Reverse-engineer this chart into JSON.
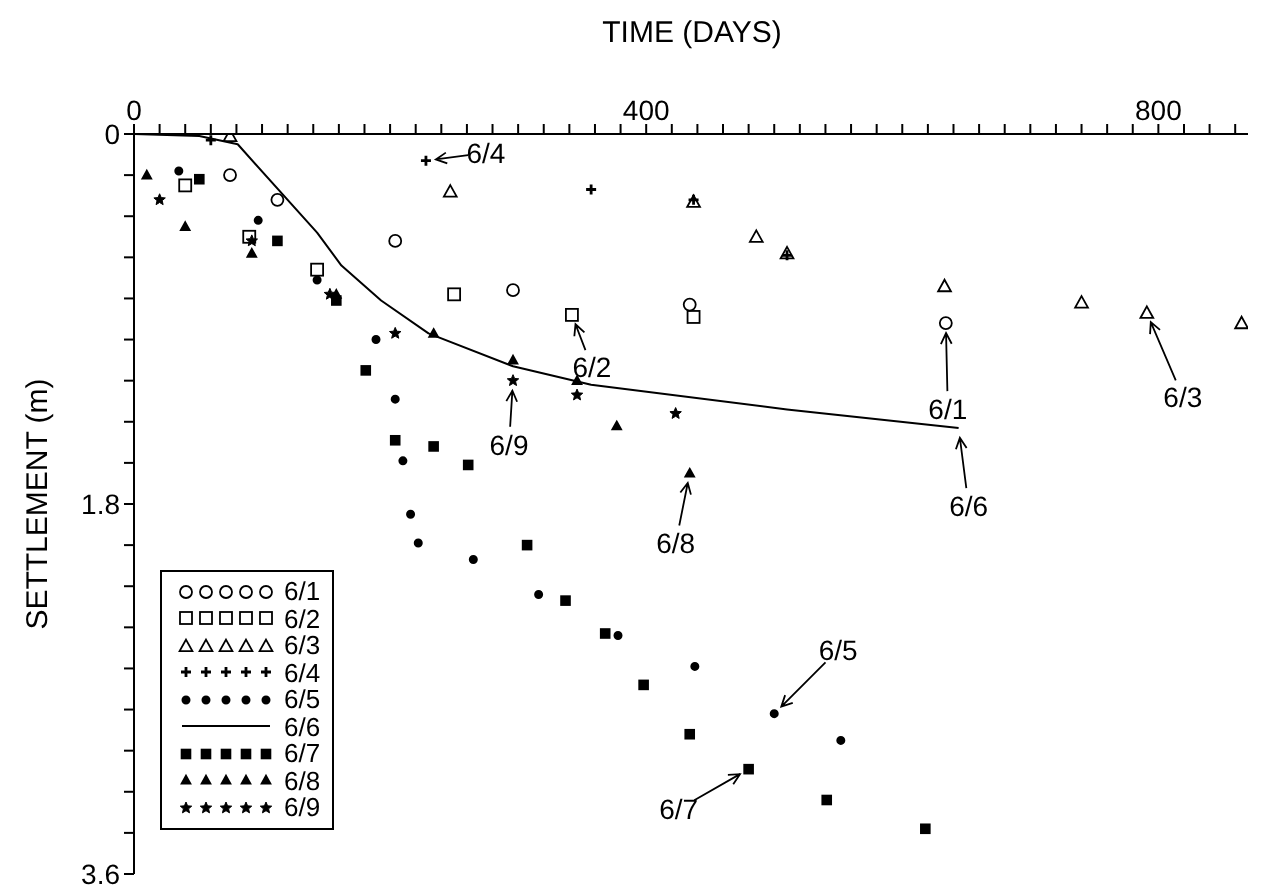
{
  "chart_data": {
    "type": "scatter",
    "xlabel": "TIME (DAYS)",
    "ylabel": "SETTLEMENT (m)",
    "xlim": [
      0,
      870
    ],
    "ylim": [
      3.6,
      0
    ],
    "xticks": [
      0,
      {
        "value": 20,
        "label": null
      },
      {
        "value": 40,
        "label": null
      },
      {
        "value": 60,
        "label": null
      },
      {
        "value": 80,
        "label": null
      },
      {
        "value": 100,
        "label": null
      },
      {
        "value": 120,
        "label": null
      },
      {
        "value": 140,
        "label": null
      },
      {
        "value": 160,
        "label": null
      },
      {
        "value": 180,
        "label": null
      },
      {
        "value": 200,
        "label": null
      },
      {
        "value": 220,
        "label": null
      },
      {
        "value": 240,
        "label": null
      },
      {
        "value": 260,
        "label": null
      },
      {
        "value": 280,
        "label": null
      },
      {
        "value": 300,
        "label": null
      },
      {
        "value": 320,
        "label": null
      },
      {
        "value": 340,
        "label": null
      },
      {
        "value": 360,
        "label": null
      },
      {
        "value": 380,
        "label": null
      },
      400,
      {
        "value": 420,
        "label": null
      },
      {
        "value": 440,
        "label": null
      },
      {
        "value": 460,
        "label": null
      },
      {
        "value": 480,
        "label": null
      },
      {
        "value": 500,
        "label": null
      },
      {
        "value": 520,
        "label": null
      },
      {
        "value": 540,
        "label": null
      },
      {
        "value": 560,
        "label": null
      },
      {
        "value": 580,
        "label": null
      },
      {
        "value": 600,
        "label": null
      },
      {
        "value": 620,
        "label": null
      },
      {
        "value": 640,
        "label": null
      },
      {
        "value": 660,
        "label": null
      },
      {
        "value": 680,
        "label": null
      },
      {
        "value": 700,
        "label": null
      },
      {
        "value": 720,
        "label": null
      },
      {
        "value": 740,
        "label": null
      },
      {
        "value": 760,
        "label": null
      },
      {
        "value": 780,
        "label": null
      },
      800,
      {
        "value": 820,
        "label": null
      },
      {
        "value": 840,
        "label": null
      },
      {
        "value": 860,
        "label": null
      }
    ],
    "yticks": [
      0,
      {
        "value": 0.2,
        "label": null
      },
      {
        "value": 0.4,
        "label": null
      },
      {
        "value": 0.6,
        "label": null
      },
      {
        "value": 0.8,
        "label": null
      },
      {
        "value": 1.0,
        "label": null
      },
      {
        "value": 1.2,
        "label": null
      },
      {
        "value": 1.4,
        "label": null
      },
      {
        "value": 1.6,
        "label": null
      },
      1.8,
      {
        "value": 2.0,
        "label": null
      },
      {
        "value": 2.2,
        "label": null
      },
      {
        "value": 2.4,
        "label": null
      },
      {
        "value": 2.6,
        "label": null
      },
      {
        "value": 2.8,
        "label": null
      },
      {
        "value": 3.0,
        "label": null
      },
      {
        "value": 3.2,
        "label": null
      },
      {
        "value": 3.4,
        "label": null
      },
      3.6
    ],
    "grid": false,
    "legend": "bottom left",
    "series": [
      {
        "name": "6/1",
        "color": "#000000",
        "marker": "circle",
        "x": [
          75,
          112,
          204,
          296,
          434,
          634
        ],
        "values": [
          0.2,
          0.32,
          0.52,
          0.76,
          0.83,
          0.92
        ]
      },
      {
        "name": "6/2",
        "color": "#000000",
        "marker": "square",
        "x": [
          40,
          90,
          143,
          250,
          342,
          437
        ],
        "values": [
          0.25,
          0.5,
          0.66,
          0.78,
          0.88,
          0.89
        ]
      },
      {
        "name": "6/3",
        "color": "#000000",
        "marker": "triangle",
        "x": [
          75,
          247,
          437,
          486,
          510,
          633,
          740,
          791,
          865
        ],
        "values": [
          0.01,
          0.28,
          0.33,
          0.5,
          0.58,
          0.74,
          0.82,
          0.87,
          0.92
        ]
      },
      {
        "name": "6/4",
        "color": "#000000",
        "marker": "cross",
        "x": [
          60,
          228,
          357,
          437,
          510
        ],
        "values": [
          0.03,
          0.13,
          0.27,
          0.32,
          0.59
        ]
      },
      {
        "name": "6/5",
        "color": "#000000",
        "marker": "circle",
        "x": [
          35,
          97,
          143,
          189,
          204,
          210,
          216,
          222,
          265,
          316,
          378,
          438,
          500,
          552
        ],
        "values": [
          0.18,
          0.42,
          0.71,
          1.0,
          1.29,
          1.59,
          1.85,
          1.99,
          2.07,
          2.24,
          2.44,
          2.59,
          2.82,
          2.95
        ]
      },
      {
        "name": "6/6",
        "color": "#000000",
        "type": "line",
        "marker": "none",
        "x": [
          0,
          51,
          81,
          143,
          162,
          193,
          230,
          296,
          357,
          510,
          644
        ],
        "values": [
          0,
          0.01,
          0.05,
          0.48,
          0.64,
          0.81,
          0.97,
          1.13,
          1.22,
          1.34,
          1.43
        ]
      },
      {
        "name": "6/7",
        "color": "#000000",
        "marker": "square",
        "x": [
          51,
          112,
          158,
          181,
          204,
          234,
          261,
          307,
          337,
          368,
          398,
          434,
          480,
          541,
          618
        ],
        "values": [
          0.22,
          0.52,
          0.81,
          1.15,
          1.49,
          1.52,
          1.61,
          2.0,
          2.27,
          2.43,
          2.68,
          2.92,
          3.09,
          3.24,
          3.38
        ]
      },
      {
        "name": "6/8",
        "color": "#000000",
        "marker": "triangle",
        "x": [
          10,
          40,
          92,
          158,
          234,
          296,
          346,
          377,
          434
        ],
        "values": [
          0.2,
          0.45,
          0.58,
          0.78,
          0.97,
          1.1,
          1.2,
          1.42,
          1.65
        ]
      },
      {
        "name": "6/9",
        "color": "#000000",
        "marker": "star",
        "x": [
          20,
          92,
          153,
          204,
          296,
          346,
          423
        ],
        "values": [
          0.32,
          0.52,
          0.78,
          0.97,
          1.2,
          1.27,
          1.36
        ]
      }
    ],
    "annotations": [
      {
        "text": "6/4",
        "x": 228,
        "y": 0.13
      },
      {
        "text": "6/2",
        "x": 342,
        "y": 0.88
      },
      {
        "text": "6/9",
        "x": 296,
        "y": 1.2
      },
      {
        "text": "6/8",
        "x": 434,
        "y": 1.65
      },
      {
        "text": "6/1",
        "x": 634,
        "y": 0.92
      },
      {
        "text": "6/6",
        "x": 644,
        "y": 1.43
      },
      {
        "text": "6/3",
        "x": 791,
        "y": 0.87
      },
      {
        "text": "6/5",
        "x": 500,
        "y": 2.82
      },
      {
        "text": "6/7",
        "x": 480,
        "y": 3.09
      }
    ]
  }
}
